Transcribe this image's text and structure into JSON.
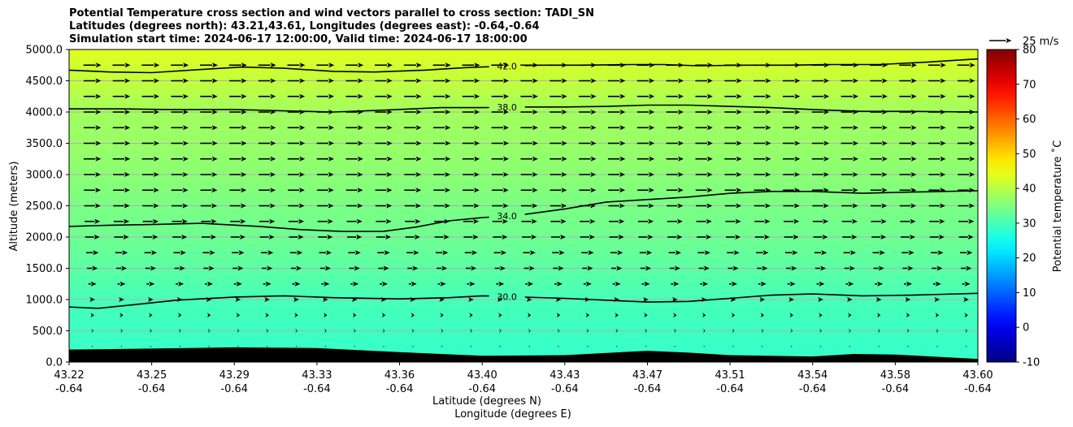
{
  "title_lines": [
    "Potential Temperature cross section and wind vectors parallel to cross section: TADI_SN",
    "Latitudes (degrees north): 43.21,43.61, Longitudes (degrees east): -0.64,-0.64",
    "Simulation start time: 2024-06-17 12:00:00, Valid time: 2024-06-17 18:00:00"
  ],
  "chart_data": {
    "type": "heatmap",
    "xlabel_lat": "Latitude (degrees N)",
    "xlabel_lon": "Longitude (degrees E)",
    "ylabel": "Altitude (meters)",
    "ylim": [
      0,
      5000
    ],
    "y_ticks": [
      "0.0",
      "500.0",
      "1000.0",
      "1500.0",
      "2000.0",
      "2500.0",
      "3000.0",
      "3500.0",
      "4000.0",
      "4500.0",
      "5000.0"
    ],
    "y_tick_values": [
      0,
      500,
      1000,
      1500,
      2000,
      2500,
      3000,
      3500,
      4000,
      4500,
      5000
    ],
    "x_ticks_lat": [
      "43.22",
      "43.25",
      "43.29",
      "43.33",
      "43.36",
      "43.40",
      "43.43",
      "43.47",
      "43.51",
      "43.54",
      "43.58",
      "43.60"
    ],
    "x_ticks_lon": [
      "-0.64",
      "-0.64",
      "-0.64",
      "-0.64",
      "-0.64",
      "-0.64",
      "-0.64",
      "-0.64",
      "-0.64",
      "-0.64",
      "-0.64",
      "-0.64"
    ],
    "grid": "horizontal",
    "colorbar": {
      "label": "Potential temperature $^\\circ$C",
      "range": [
        -10,
        80
      ],
      "ticks": [
        "-10",
        "0",
        "10",
        "20",
        "30",
        "40",
        "50",
        "60",
        "70",
        "80"
      ],
      "tick_values": [
        -10,
        0,
        10,
        20,
        30,
        40,
        50,
        60,
        70,
        80
      ]
    },
    "quiver_key_label": "25 m/s",
    "temperature_profile": [
      {
        "altitude": 0,
        "theta": 28.5
      },
      {
        "altitude": 500,
        "theta": 29.0
      },
      {
        "altitude": 1000,
        "theta": 30.0
      },
      {
        "altitude": 1400,
        "theta": 31.5
      },
      {
        "altitude": 2000,
        "theta": 33.5
      },
      {
        "altitude": 2500,
        "theta": 34.5
      },
      {
        "altitude": 3000,
        "theta": 36.0
      },
      {
        "altitude": 3500,
        "theta": 37.2
      },
      {
        "altitude": 4000,
        "theta": 38.0
      },
      {
        "altitude": 4500,
        "theta": 41.0
      },
      {
        "altitude": 5000,
        "theta": 43.5
      }
    ],
    "terrain": [
      {
        "x": 0.0,
        "altitude": 200
      },
      {
        "x": 1.0,
        "altitude": 215
      },
      {
        "x": 2.0,
        "altitude": 235
      },
      {
        "x": 3.0,
        "altitude": 225
      },
      {
        "x": 4.0,
        "altitude": 160
      },
      {
        "x": 5.0,
        "altitude": 100
      },
      {
        "x": 6.0,
        "altitude": 110
      },
      {
        "x": 7.0,
        "altitude": 180
      },
      {
        "x": 7.5,
        "altitude": 150
      },
      {
        "x": 8.0,
        "altitude": 110
      },
      {
        "x": 9.0,
        "altitude": 90
      },
      {
        "x": 9.5,
        "altitude": 130
      },
      {
        "x": 10.0,
        "altitude": 120
      },
      {
        "x": 11.0,
        "altitude": 50
      }
    ],
    "contours": [
      {
        "label": "30.0",
        "label_x": 5.3,
        "points": [
          [
            0.0,
            880
          ],
          [
            0.35,
            860
          ],
          [
            0.8,
            920
          ],
          [
            1.3,
            990
          ],
          [
            2.0,
            1040
          ],
          [
            2.6,
            1060
          ],
          [
            3.2,
            1030
          ],
          [
            4.0,
            1010
          ],
          [
            4.6,
            1030
          ],
          [
            5.0,
            1060
          ],
          [
            5.5,
            1040
          ],
          [
            6.0,
            1020
          ],
          [
            6.5,
            990
          ],
          [
            7.0,
            960
          ],
          [
            7.5,
            970
          ],
          [
            8.0,
            1020
          ],
          [
            8.5,
            1070
          ],
          [
            9.0,
            1090
          ],
          [
            9.6,
            1060
          ],
          [
            10.2,
            1070
          ],
          [
            11.0,
            1100
          ]
        ]
      },
      {
        "label": "34.0",
        "label_x": 5.3,
        "points": [
          [
            0.0,
            2170
          ],
          [
            0.5,
            2190
          ],
          [
            1.0,
            2200
          ],
          [
            1.6,
            2220
          ],
          [
            2.3,
            2170
          ],
          [
            2.8,
            2120
          ],
          [
            3.3,
            2090
          ],
          [
            3.8,
            2090
          ],
          [
            4.2,
            2160
          ],
          [
            4.6,
            2260
          ],
          [
            5.0,
            2310
          ],
          [
            5.5,
            2360
          ],
          [
            6.0,
            2450
          ],
          [
            6.5,
            2560
          ],
          [
            7.0,
            2600
          ],
          [
            7.5,
            2640
          ],
          [
            8.0,
            2700
          ],
          [
            8.5,
            2730
          ],
          [
            9.0,
            2730
          ],
          [
            9.6,
            2700
          ],
          [
            10.2,
            2720
          ],
          [
            11.0,
            2740
          ]
        ]
      },
      {
        "label": "38.0",
        "label_x": 5.3,
        "points": [
          [
            0.0,
            4050
          ],
          [
            0.6,
            4050
          ],
          [
            1.2,
            4040
          ],
          [
            2.0,
            4040
          ],
          [
            2.6,
            4020
          ],
          [
            3.2,
            4000
          ],
          [
            3.8,
            4030
          ],
          [
            4.5,
            4070
          ],
          [
            5.0,
            4070
          ],
          [
            5.5,
            4080
          ],
          [
            6.0,
            4080
          ],
          [
            6.5,
            4090
          ],
          [
            7.0,
            4110
          ],
          [
            7.5,
            4110
          ],
          [
            8.0,
            4090
          ],
          [
            8.5,
            4070
          ],
          [
            9.0,
            4040
          ],
          [
            9.6,
            4010
          ],
          [
            10.2,
            4010
          ],
          [
            11.0,
            4000
          ]
        ]
      },
      {
        "label": "42.0",
        "label_x": 5.3,
        "points": [
          [
            0.0,
            4670
          ],
          [
            0.5,
            4640
          ],
          [
            1.0,
            4630
          ],
          [
            1.6,
            4680
          ],
          [
            2.1,
            4720
          ],
          [
            2.6,
            4700
          ],
          [
            3.2,
            4650
          ],
          [
            3.7,
            4640
          ],
          [
            4.3,
            4670
          ],
          [
            4.8,
            4710
          ],
          [
            5.2,
            4730
          ],
          [
            5.7,
            4750
          ],
          [
            6.2,
            4750
          ],
          [
            6.8,
            4760
          ],
          [
            7.2,
            4760
          ],
          [
            7.6,
            4740
          ],
          [
            8.2,
            4750
          ],
          [
            8.7,
            4750
          ],
          [
            9.2,
            4760
          ],
          [
            9.8,
            4760
          ],
          [
            10.4,
            4800
          ],
          [
            11.0,
            4850
          ]
        ]
      }
    ],
    "wind_profile": [
      {
        "altitude": 250,
        "u": 0.5
      },
      {
        "altitude": 500,
        "u": 2.5
      },
      {
        "altitude": 750,
        "u": 4.0
      },
      {
        "altitude": 1000,
        "u": 6.0
      },
      {
        "altitude": 1250,
        "u": 9.0
      },
      {
        "altitude": 1500,
        "u": 12.0
      },
      {
        "altitude": 1750,
        "u": 14.0
      },
      {
        "altitude": 2000,
        "u": 16.5
      },
      {
        "altitude": 2250,
        "u": 17.5
      },
      {
        "altitude": 2500,
        "u": 18.5
      },
      {
        "altitude": 2750,
        "u": 19.0
      },
      {
        "altitude": 3000,
        "u": 19.0
      },
      {
        "altitude": 3250,
        "u": 19.5
      },
      {
        "altitude": 3500,
        "u": 19.5
      },
      {
        "altitude": 3750,
        "u": 19.5
      },
      {
        "altitude": 4000,
        "u": 19.5
      },
      {
        "altitude": 4250,
        "u": 19.5
      },
      {
        "altitude": 4500,
        "u": 19.5
      },
      {
        "altitude": 4750,
        "u": 20.0
      }
    ]
  }
}
